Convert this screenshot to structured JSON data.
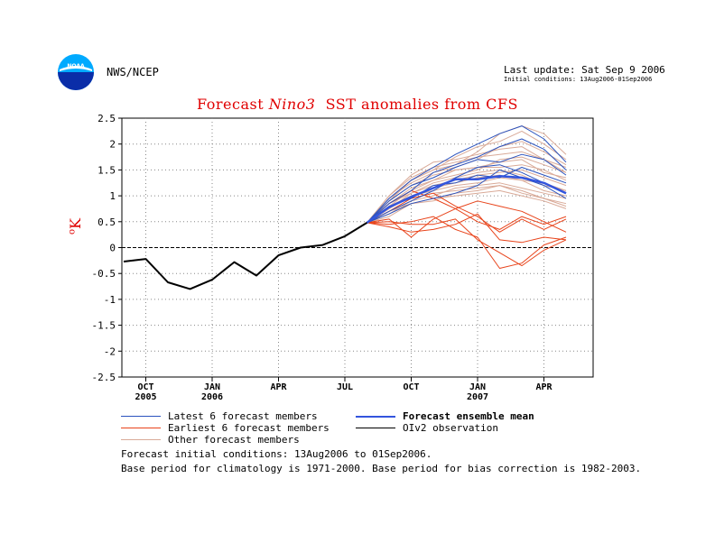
{
  "header": {
    "logo_text": "NOAA",
    "agency": "NWS/NCEP",
    "last_update": "Last update: Sat Sep  9 2006",
    "initial_conditions": "Initial conditions: 13Aug2006-01Sep2006"
  },
  "title": {
    "prefix": "Forecast",
    "region": "Nino3",
    "suffix": "SST anomalies from CFS"
  },
  "legend": {
    "latest": "Latest 6 forecast members",
    "earliest": "Earliest 6 forecast members",
    "other": "Other forecast members",
    "mean": "Forecast ensemble mean",
    "obs": "OIv2 observation"
  },
  "footnotes": {
    "line1": "Forecast initial conditions: 13Aug2006 to 01Sep2006.",
    "line2": "Base period for climatology is 1971-2000. Base period for bias correction is 1982-2003."
  },
  "colors": {
    "latest": "#2a52be",
    "earliest": "#e8431a",
    "other": "#d9aa98",
    "mean": "#3355dd",
    "obs": "#000000",
    "title": "#e00000",
    "ylabel": "#e00000"
  },
  "chart_data": {
    "type": "line",
    "title": "Forecast Nino3 SST anomalies from CFS",
    "xlabel": "",
    "ylabel": "oK",
    "ylim": [
      -2.5,
      2.5
    ],
    "yticks": [
      "2.5",
      "2",
      "1.5",
      "1",
      "0.5",
      "0",
      "-0.5",
      "-1",
      "-1.5",
      "-2",
      "-2.5"
    ],
    "yticks_values": [
      2.5,
      2,
      1.5,
      1,
      0.5,
      0,
      -0.5,
      -1,
      -1.5,
      -2,
      -2.5
    ],
    "xlim": [
      0,
      20.5
    ],
    "xticks": [
      {
        "x": 1,
        "label": "OCT",
        "year": "2005"
      },
      {
        "x": 4,
        "label": "JAN",
        "year": "2006"
      },
      {
        "x": 7,
        "label": "APR",
        "year": ""
      },
      {
        "x": 10,
        "label": "JUL",
        "year": ""
      },
      {
        "x": 13,
        "label": "OCT",
        "year": ""
      },
      {
        "x": 16,
        "label": "JAN",
        "year": "2007"
      },
      {
        "x": 19,
        "label": "APR",
        "year": ""
      }
    ],
    "grid": true,
    "zero_line": true,
    "observation": {
      "name": "OIv2 observation",
      "x": [
        0,
        1,
        2,
        3,
        4,
        5,
        6,
        7,
        8,
        9,
        10,
        11
      ],
      "y": [
        -0.27,
        -0.22,
        -0.67,
        -0.8,
        -0.62,
        -0.28,
        -0.54,
        -0.15,
        0.0,
        0.05,
        0.22,
        0.48
      ]
    },
    "forecast_x": [
      11,
      12,
      13,
      14,
      15,
      16,
      17,
      18,
      19,
      20
    ],
    "ensemble_mean": {
      "name": "Forecast ensemble mean",
      "y": [
        0.48,
        0.78,
        0.98,
        1.15,
        1.32,
        1.32,
        1.38,
        1.35,
        1.25,
        1.05
      ]
    },
    "latest_members": [
      {
        "y": [
          0.48,
          0.85,
          1.1,
          1.45,
          1.6,
          1.75,
          1.95,
          2.1,
          1.9,
          1.5
        ]
      },
      {
        "y": [
          0.48,
          0.7,
          0.9,
          1.1,
          1.35,
          1.55,
          1.6,
          1.45,
          1.25,
          1.05
        ]
      },
      {
        "y": [
          0.48,
          0.95,
          1.3,
          1.55,
          1.8,
          2.0,
          2.2,
          2.35,
          2.1,
          1.65
        ]
      },
      {
        "y": [
          0.48,
          0.8,
          0.95,
          1.2,
          1.25,
          1.4,
          1.35,
          1.55,
          1.4,
          1.25
        ]
      },
      {
        "y": [
          0.48,
          0.65,
          0.85,
          0.95,
          1.05,
          1.2,
          1.5,
          1.35,
          1.2,
          0.95
        ]
      },
      {
        "y": [
          0.48,
          0.9,
          1.2,
          1.35,
          1.55,
          1.7,
          1.65,
          1.8,
          1.7,
          1.4
        ]
      }
    ],
    "earliest_members": [
      {
        "y": [
          0.48,
          0.55,
          0.2,
          0.55,
          0.75,
          0.5,
          0.35,
          0.6,
          0.45,
          0.6
        ]
      },
      {
        "y": [
          0.48,
          0.45,
          0.5,
          0.6,
          0.35,
          0.2,
          -0.4,
          -0.3,
          0.05,
          0.2
        ]
      },
      {
        "y": [
          0.48,
          0.7,
          0.95,
          1.05,
          0.8,
          0.6,
          0.3,
          0.55,
          0.35,
          0.55
        ]
      },
      {
        "y": [
          0.48,
          0.5,
          0.45,
          0.45,
          0.55,
          0.15,
          -0.1,
          -0.35,
          -0.05,
          0.15
        ]
      },
      {
        "y": [
          0.48,
          0.85,
          1.1,
          0.95,
          0.75,
          0.9,
          0.8,
          0.7,
          0.5,
          0.3
        ]
      },
      {
        "y": [
          0.48,
          0.4,
          0.3,
          0.35,
          0.45,
          0.65,
          0.15,
          0.1,
          0.2,
          0.15
        ]
      }
    ],
    "other_members": [
      {
        "y": [
          0.48,
          0.9,
          1.3,
          1.5,
          1.6,
          1.85,
          2.2,
          2.35,
          2.2,
          1.8
        ]
      },
      {
        "y": [
          0.48,
          1.0,
          1.4,
          1.65,
          1.7,
          1.8,
          1.9,
          1.95,
          1.7,
          1.55
        ]
      },
      {
        "y": [
          0.48,
          0.85,
          1.15,
          1.3,
          1.5,
          1.55,
          1.65,
          1.7,
          1.45,
          1.35
        ]
      },
      {
        "y": [
          0.48,
          0.75,
          1.05,
          1.25,
          1.35,
          1.45,
          1.5,
          1.4,
          1.2,
          1.1
        ]
      },
      {
        "y": [
          0.48,
          0.8,
          1.0,
          1.1,
          1.2,
          1.25,
          1.35,
          1.3,
          1.1,
          1.0
        ]
      },
      {
        "y": [
          0.48,
          0.7,
          0.95,
          1.05,
          1.1,
          1.15,
          1.2,
          1.05,
          0.95,
          0.8
        ]
      },
      {
        "y": [
          0.48,
          0.95,
          1.25,
          1.45,
          1.55,
          1.7,
          1.95,
          2.05,
          1.85,
          1.6
        ]
      },
      {
        "y": [
          0.48,
          0.65,
          0.9,
          1.0,
          1.15,
          1.2,
          1.25,
          1.15,
          1.05,
          0.95
        ]
      },
      {
        "y": [
          0.48,
          0.8,
          1.1,
          1.3,
          1.4,
          1.5,
          1.7,
          1.75,
          1.6,
          1.45
        ]
      },
      {
        "y": [
          0.48,
          0.9,
          1.2,
          1.4,
          1.5,
          1.55,
          1.55,
          1.6,
          1.5,
          1.3
        ]
      },
      {
        "y": [
          0.48,
          0.6,
          0.85,
          0.95,
          1.0,
          1.05,
          1.1,
          1.0,
          0.9,
          0.75
        ]
      },
      {
        "y": [
          0.48,
          0.85,
          1.05,
          1.2,
          1.3,
          1.4,
          1.45,
          1.5,
          1.35,
          1.2
        ]
      },
      {
        "y": [
          0.48,
          1.0,
          1.35,
          1.55,
          1.65,
          1.75,
          1.8,
          1.85,
          1.7,
          1.45
        ]
      },
      {
        "y": [
          0.48,
          0.75,
          1.0,
          1.15,
          1.25,
          1.35,
          1.4,
          1.3,
          1.25,
          1.1
        ]
      },
      {
        "y": [
          0.48,
          0.7,
          0.85,
          0.9,
          1.05,
          1.1,
          1.2,
          1.1,
          0.95,
          0.85
        ]
      },
      {
        "y": [
          0.48,
          0.95,
          1.3,
          1.5,
          1.75,
          1.95,
          2.05,
          2.25,
          2.0,
          1.7
        ]
      }
    ]
  }
}
